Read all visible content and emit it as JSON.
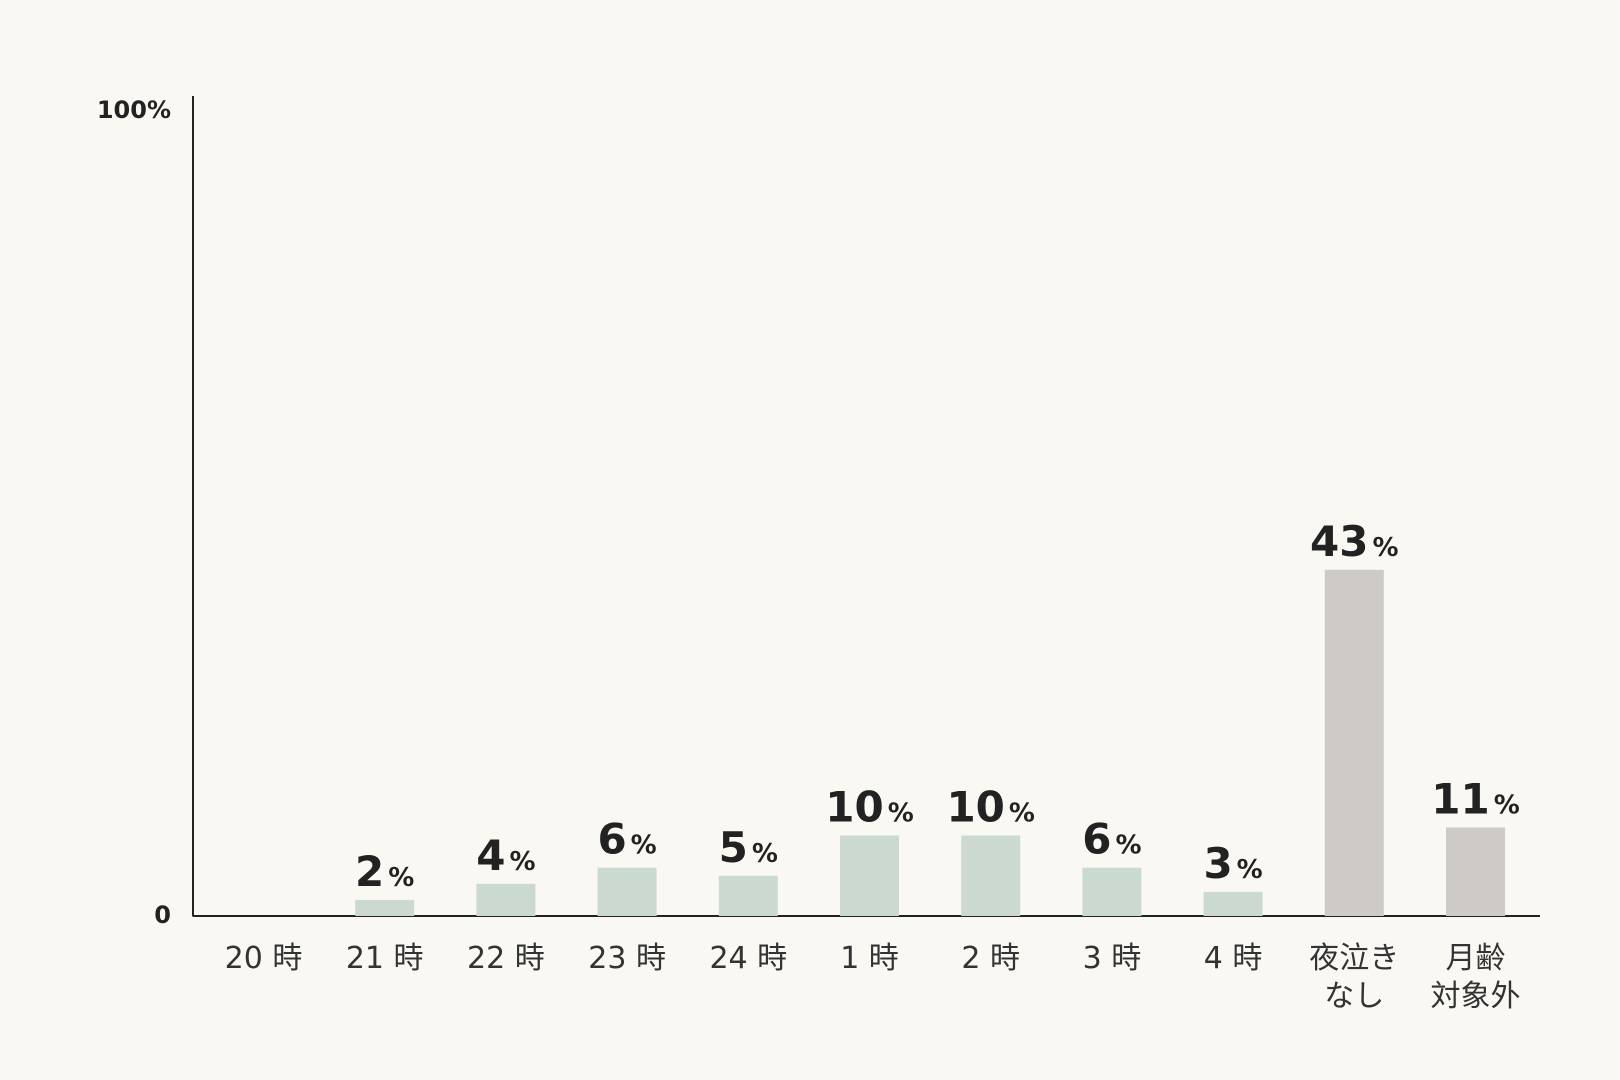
{
  "chart_data": {
    "type": "bar",
    "categories": [
      "20 時",
      "21 時",
      "22 時",
      "23 時",
      "24 時",
      "1 時",
      "2 時",
      "3 時",
      "4 時",
      "夜泣き\nなし",
      "月齢\n対象外"
    ],
    "values": [
      0,
      2,
      4,
      6,
      5,
      10,
      10,
      6,
      3,
      43,
      11
    ],
    "value_labels": [
      null,
      "2%",
      "4%",
      "6%",
      "5%",
      "10%",
      "10%",
      "6%",
      "3%",
      "43%",
      "11%"
    ],
    "colors": [
      "#cbd9d1",
      "#cbd9d1",
      "#cbd9d1",
      "#cbd9d1",
      "#cbd9d1",
      "#cbd9d1",
      "#cbd9d1",
      "#cbd9d1",
      "#cbd9d1",
      "#cecbc6",
      "#cecbc6"
    ],
    "ylim": [
      0,
      100
    ],
    "yticks": [
      0,
      {
        "value": 100,
        "label": "100%"
      }
    ]
  }
}
